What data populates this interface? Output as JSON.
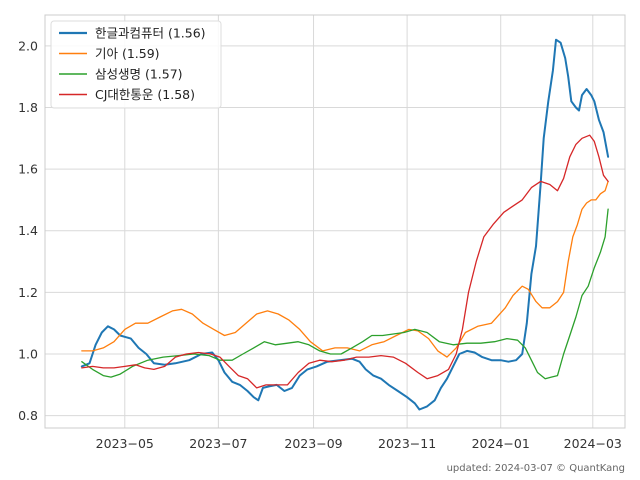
{
  "chart_data": {
    "type": "line",
    "grid": true,
    "legend_position": "top-left",
    "y_range": [
      0.76,
      2.1
    ],
    "x_range": [
      "2023-03-10",
      "2024-03-22"
    ],
    "y_ticks": [
      "0.8",
      "1.0",
      "1.2",
      "1.4",
      "1.6",
      "1.8",
      "2.0"
    ],
    "x_ticks": [
      {
        "date": "2023-05-01",
        "label": "2023−05"
      },
      {
        "date": "2023-07-01",
        "label": "2023−07"
      },
      {
        "date": "2023-09-01",
        "label": "2023−09"
      },
      {
        "date": "2023-11-01",
        "label": "2023−11"
      },
      {
        "date": "2024-01-01",
        "label": "2024−01"
      },
      {
        "date": "2024-03-01",
        "label": "2024−03"
      }
    ],
    "series": [
      {
        "name": "한글과컴퓨터 (1.56)",
        "color": "#1f77b4",
        "width": 2,
        "points": [
          [
            "2023-04-03",
            0.96
          ],
          [
            "2023-04-08",
            0.97
          ],
          [
            "2023-04-12",
            1.03
          ],
          [
            "2023-04-16",
            1.07
          ],
          [
            "2023-04-20",
            1.09
          ],
          [
            "2023-04-24",
            1.08
          ],
          [
            "2023-04-28",
            1.06
          ],
          [
            "2023-05-05",
            1.05
          ],
          [
            "2023-05-10",
            1.02
          ],
          [
            "2023-05-15",
            1.0
          ],
          [
            "2023-05-20",
            0.97
          ],
          [
            "2023-05-27",
            0.965
          ],
          [
            "2023-06-03",
            0.97
          ],
          [
            "2023-06-12",
            0.98
          ],
          [
            "2023-06-20",
            1.0
          ],
          [
            "2023-06-27",
            1.005
          ],
          [
            "2023-07-01",
            0.98
          ],
          [
            "2023-07-05",
            0.94
          ],
          [
            "2023-07-10",
            0.91
          ],
          [
            "2023-07-15",
            0.9
          ],
          [
            "2023-07-20",
            0.88
          ],
          [
            "2023-07-24",
            0.86
          ],
          [
            "2023-07-27",
            0.85
          ],
          [
            "2023-07-30",
            0.89
          ],
          [
            "2023-08-03",
            0.895
          ],
          [
            "2023-08-08",
            0.9
          ],
          [
            "2023-08-13",
            0.88
          ],
          [
            "2023-08-18",
            0.89
          ],
          [
            "2023-08-23",
            0.93
          ],
          [
            "2023-08-28",
            0.95
          ],
          [
            "2023-09-03",
            0.96
          ],
          [
            "2023-09-10",
            0.975
          ],
          [
            "2023-09-18",
            0.98
          ],
          [
            "2023-09-26",
            0.985
          ],
          [
            "2023-10-01",
            0.975
          ],
          [
            "2023-10-05",
            0.95
          ],
          [
            "2023-10-10",
            0.93
          ],
          [
            "2023-10-15",
            0.92
          ],
          [
            "2023-10-20",
            0.9
          ],
          [
            "2023-10-26",
            0.88
          ],
          [
            "2023-11-01",
            0.86
          ],
          [
            "2023-11-06",
            0.84
          ],
          [
            "2023-11-09",
            0.82
          ],
          [
            "2023-11-14",
            0.83
          ],
          [
            "2023-11-19",
            0.85
          ],
          [
            "2023-11-23",
            0.89
          ],
          [
            "2023-11-27",
            0.92
          ],
          [
            "2023-12-01",
            0.96
          ],
          [
            "2023-12-05",
            1.0
          ],
          [
            "2023-12-10",
            1.01
          ],
          [
            "2023-12-15",
            1.005
          ],
          [
            "2023-12-20",
            0.99
          ],
          [
            "2023-12-26",
            0.98
          ],
          [
            "2024-01-01",
            0.98
          ],
          [
            "2024-01-06",
            0.975
          ],
          [
            "2024-01-11",
            0.98
          ],
          [
            "2024-01-15",
            1.0
          ],
          [
            "2024-01-18",
            1.1
          ],
          [
            "2024-01-21",
            1.26
          ],
          [
            "2024-01-24",
            1.35
          ],
          [
            "2024-01-27",
            1.55
          ],
          [
            "2024-01-29",
            1.7
          ],
          [
            "2024-02-01",
            1.82
          ],
          [
            "2024-02-04",
            1.92
          ],
          [
            "2024-02-06",
            2.02
          ],
          [
            "2024-02-09",
            2.01
          ],
          [
            "2024-02-12",
            1.96
          ],
          [
            "2024-02-14",
            1.9
          ],
          [
            "2024-02-16",
            1.82
          ],
          [
            "2024-02-19",
            1.8
          ],
          [
            "2024-02-21",
            1.79
          ],
          [
            "2024-02-23",
            1.84
          ],
          [
            "2024-02-26",
            1.86
          ],
          [
            "2024-02-29",
            1.84
          ],
          [
            "2024-03-02",
            1.82
          ],
          [
            "2024-03-05",
            1.76
          ],
          [
            "2024-03-08",
            1.72
          ],
          [
            "2024-03-11",
            1.64
          ]
        ]
      },
      {
        "name": "기아 (1.59)",
        "color": "#ff7f0e",
        "width": 1.3,
        "points": [
          [
            "2023-04-03",
            1.01
          ],
          [
            "2023-04-10",
            1.01
          ],
          [
            "2023-04-17",
            1.02
          ],
          [
            "2023-04-24",
            1.04
          ],
          [
            "2023-05-01",
            1.08
          ],
          [
            "2023-05-08",
            1.1
          ],
          [
            "2023-05-16",
            1.1
          ],
          [
            "2023-05-24",
            1.12
          ],
          [
            "2023-06-01",
            1.14
          ],
          [
            "2023-06-07",
            1.145
          ],
          [
            "2023-06-14",
            1.13
          ],
          [
            "2023-06-21",
            1.1
          ],
          [
            "2023-06-28",
            1.08
          ],
          [
            "2023-07-05",
            1.06
          ],
          [
            "2023-07-12",
            1.07
          ],
          [
            "2023-07-19",
            1.1
          ],
          [
            "2023-07-26",
            1.13
          ],
          [
            "2023-08-02",
            1.14
          ],
          [
            "2023-08-09",
            1.13
          ],
          [
            "2023-08-16",
            1.11
          ],
          [
            "2023-08-23",
            1.08
          ],
          [
            "2023-08-30",
            1.04
          ],
          [
            "2023-09-07",
            1.01
          ],
          [
            "2023-09-15",
            1.02
          ],
          [
            "2023-09-23",
            1.02
          ],
          [
            "2023-10-01",
            1.01
          ],
          [
            "2023-10-09",
            1.03
          ],
          [
            "2023-10-17",
            1.04
          ],
          [
            "2023-10-25",
            1.06
          ],
          [
            "2023-11-02",
            1.08
          ],
          [
            "2023-11-08",
            1.075
          ],
          [
            "2023-11-15",
            1.05
          ],
          [
            "2023-11-21",
            1.01
          ],
          [
            "2023-11-27",
            0.99
          ],
          [
            "2023-12-03",
            1.02
          ],
          [
            "2023-12-09",
            1.07
          ],
          [
            "2023-12-17",
            1.09
          ],
          [
            "2023-12-26",
            1.1
          ],
          [
            "2024-01-04",
            1.15
          ],
          [
            "2024-01-09",
            1.19
          ],
          [
            "2024-01-15",
            1.22
          ],
          [
            "2024-01-19",
            1.21
          ],
          [
            "2024-01-24",
            1.17
          ],
          [
            "2024-01-28",
            1.15
          ],
          [
            "2024-02-02",
            1.15
          ],
          [
            "2024-02-07",
            1.17
          ],
          [
            "2024-02-11",
            1.2
          ],
          [
            "2024-02-14",
            1.3
          ],
          [
            "2024-02-17",
            1.38
          ],
          [
            "2024-02-20",
            1.42
          ],
          [
            "2024-02-23",
            1.47
          ],
          [
            "2024-02-26",
            1.49
          ],
          [
            "2024-02-29",
            1.5
          ],
          [
            "2024-03-03",
            1.5
          ],
          [
            "2024-03-06",
            1.52
          ],
          [
            "2024-03-09",
            1.53
          ],
          [
            "2024-03-11",
            1.56
          ]
        ]
      },
      {
        "name": "삼성생명 (1.57)",
        "color": "#2ca02c",
        "width": 1.3,
        "points": [
          [
            "2023-04-03",
            0.975
          ],
          [
            "2023-04-10",
            0.95
          ],
          [
            "2023-04-17",
            0.93
          ],
          [
            "2023-04-22",
            0.925
          ],
          [
            "2023-04-28",
            0.935
          ],
          [
            "2023-05-06",
            0.96
          ],
          [
            "2023-05-16",
            0.98
          ],
          [
            "2023-05-26",
            0.99
          ],
          [
            "2023-06-05",
            0.995
          ],
          [
            "2023-06-15",
            1.0
          ],
          [
            "2023-06-25",
            0.995
          ],
          [
            "2023-07-02",
            0.98
          ],
          [
            "2023-07-10",
            0.98
          ],
          [
            "2023-07-17",
            1.0
          ],
          [
            "2023-07-24",
            1.02
          ],
          [
            "2023-07-31",
            1.04
          ],
          [
            "2023-08-07",
            1.03
          ],
          [
            "2023-08-15",
            1.035
          ],
          [
            "2023-08-22",
            1.04
          ],
          [
            "2023-08-29",
            1.03
          ],
          [
            "2023-09-05",
            1.01
          ],
          [
            "2023-09-12",
            1.0
          ],
          [
            "2023-09-19",
            1.0
          ],
          [
            "2023-09-26",
            1.02
          ],
          [
            "2023-10-03",
            1.04
          ],
          [
            "2023-10-09",
            1.06
          ],
          [
            "2023-10-16",
            1.06
          ],
          [
            "2023-10-23",
            1.065
          ],
          [
            "2023-10-30",
            1.07
          ],
          [
            "2023-11-06",
            1.08
          ],
          [
            "2023-11-14",
            1.07
          ],
          [
            "2023-11-22",
            1.04
          ],
          [
            "2023-12-01",
            1.03
          ],
          [
            "2023-12-10",
            1.035
          ],
          [
            "2023-12-19",
            1.035
          ],
          [
            "2023-12-28",
            1.04
          ],
          [
            "2024-01-05",
            1.05
          ],
          [
            "2024-01-12",
            1.045
          ],
          [
            "2024-01-17",
            1.02
          ],
          [
            "2024-01-21",
            0.98
          ],
          [
            "2024-01-25",
            0.94
          ],
          [
            "2024-01-30",
            0.92
          ],
          [
            "2024-02-03",
            0.925
          ],
          [
            "2024-02-07",
            0.93
          ],
          [
            "2024-02-11",
            1.0
          ],
          [
            "2024-02-15",
            1.06
          ],
          [
            "2024-02-19",
            1.12
          ],
          [
            "2024-02-23",
            1.19
          ],
          [
            "2024-02-27",
            1.22
          ],
          [
            "2024-03-02",
            1.28
          ],
          [
            "2024-03-06",
            1.33
          ],
          [
            "2024-03-09",
            1.38
          ],
          [
            "2024-03-11",
            1.47
          ]
        ]
      },
      {
        "name": "CJ대한통운 (1.58)",
        "color": "#d62728",
        "width": 1.3,
        "points": [
          [
            "2023-04-03",
            0.955
          ],
          [
            "2023-04-10",
            0.96
          ],
          [
            "2023-04-17",
            0.955
          ],
          [
            "2023-04-24",
            0.955
          ],
          [
            "2023-05-01",
            0.96
          ],
          [
            "2023-05-08",
            0.965
          ],
          [
            "2023-05-14",
            0.955
          ],
          [
            "2023-05-20",
            0.95
          ],
          [
            "2023-05-27",
            0.96
          ],
          [
            "2023-06-03",
            0.99
          ],
          [
            "2023-06-10",
            1.0
          ],
          [
            "2023-06-18",
            1.005
          ],
          [
            "2023-06-26",
            1.0
          ],
          [
            "2023-07-02",
            0.99
          ],
          [
            "2023-07-08",
            0.96
          ],
          [
            "2023-07-14",
            0.93
          ],
          [
            "2023-07-20",
            0.92
          ],
          [
            "2023-07-26",
            0.89
          ],
          [
            "2023-08-01",
            0.9
          ],
          [
            "2023-08-08",
            0.9
          ],
          [
            "2023-08-15",
            0.9
          ],
          [
            "2023-08-22",
            0.94
          ],
          [
            "2023-08-29",
            0.97
          ],
          [
            "2023-09-05",
            0.98
          ],
          [
            "2023-09-13",
            0.975
          ],
          [
            "2023-09-21",
            0.98
          ],
          [
            "2023-09-29",
            0.99
          ],
          [
            "2023-10-07",
            0.99
          ],
          [
            "2023-10-15",
            0.995
          ],
          [
            "2023-10-23",
            0.99
          ],
          [
            "2023-10-31",
            0.97
          ],
          [
            "2023-11-08",
            0.94
          ],
          [
            "2023-11-14",
            0.92
          ],
          [
            "2023-11-21",
            0.93
          ],
          [
            "2023-11-28",
            0.95
          ],
          [
            "2023-12-03",
            1.0
          ],
          [
            "2023-12-07",
            1.08
          ],
          [
            "2023-12-11",
            1.2
          ],
          [
            "2023-12-16",
            1.3
          ],
          [
            "2023-12-21",
            1.38
          ],
          [
            "2023-12-27",
            1.42
          ],
          [
            "2024-01-03",
            1.46
          ],
          [
            "2024-01-09",
            1.48
          ],
          [
            "2024-01-15",
            1.5
          ],
          [
            "2024-01-21",
            1.54
          ],
          [
            "2024-01-27",
            1.56
          ],
          [
            "2024-02-02",
            1.55
          ],
          [
            "2024-02-07",
            1.53
          ],
          [
            "2024-02-11",
            1.57
          ],
          [
            "2024-02-15",
            1.64
          ],
          [
            "2024-02-19",
            1.68
          ],
          [
            "2024-02-23",
            1.7
          ],
          [
            "2024-02-28",
            1.71
          ],
          [
            "2024-03-02",
            1.69
          ],
          [
            "2024-03-05",
            1.64
          ],
          [
            "2024-03-08",
            1.58
          ],
          [
            "2024-03-11",
            1.56
          ]
        ]
      }
    ],
    "footer": "updated: 2024-03-07 © QuantKang"
  }
}
